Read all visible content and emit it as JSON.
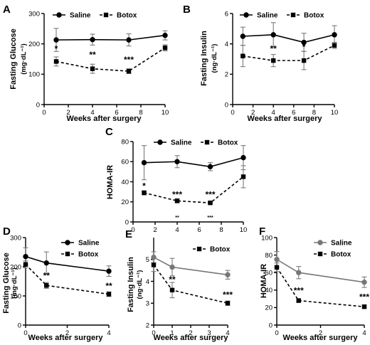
{
  "chart_data": [
    {
      "type": "line",
      "letter": "A",
      "xlabel": "Weeks after surgery",
      "ylabel": "Fasting Glucose",
      "yunit": "(mg·dL⁻¹)",
      "x": [
        1,
        4,
        7,
        10
      ],
      "xlim": [
        0,
        10
      ],
      "xticks": [
        0,
        2,
        4,
        6,
        8,
        10
      ],
      "ylim": [
        0,
        300
      ],
      "yticks": [
        0,
        100,
        200,
        300
      ],
      "legend": "top",
      "series": [
        {
          "name": "Saline",
          "values": [
            213,
            214,
            213,
            228
          ],
          "err": [
            38,
            18,
            20,
            15
          ],
          "style": "solid",
          "marker": "circle",
          "color": "#000000"
        },
        {
          "name": "Botox",
          "values": [
            142,
            118,
            110,
            187
          ],
          "err": [
            15,
            15,
            8,
            10
          ],
          "style": "dashed",
          "marker": "square",
          "color": "#000000"
        }
      ],
      "annotations": [
        {
          "x": 1,
          "y": 175,
          "text": "*"
        },
        {
          "x": 4,
          "y": 155,
          "text": "**"
        },
        {
          "x": 7,
          "y": 138,
          "text": "***"
        }
      ]
    },
    {
      "type": "line",
      "letter": "B",
      "xlabel": "Weeks after surgery",
      "ylabel": "Fasting Insulin",
      "yunit": "(ng·dL⁻¹)",
      "x": [
        1,
        4,
        7,
        10
      ],
      "xlim": [
        0,
        10
      ],
      "xticks": [
        0,
        2,
        4,
        6,
        8,
        10
      ],
      "ylim": [
        0,
        6
      ],
      "yticks": [
        0,
        2,
        4,
        6
      ],
      "legend": "top",
      "series": [
        {
          "name": "Saline",
          "values": [
            4.5,
            4.6,
            4.1,
            4.6
          ],
          "err": [
            0.6,
            0.8,
            0.6,
            0.6
          ],
          "style": "solid",
          "marker": "circle",
          "color": "#000000"
        },
        {
          "name": "Botox",
          "values": [
            3.2,
            2.9,
            2.9,
            3.9
          ],
          "err": [
            0.7,
            0.4,
            0.6,
            0.2
          ],
          "style": "dashed",
          "marker": "square",
          "color": "#000000"
        }
      ],
      "annotations": [
        {
          "x": 4,
          "y": 3.5,
          "text": "**"
        },
        {
          "x": 7,
          "y": 3.6,
          "text": "*"
        }
      ]
    },
    {
      "type": "line",
      "letter": "C",
      "xlabel": "",
      "ylabel": "HOMA-IR",
      "yunit": "",
      "x": [
        1,
        4,
        7,
        10
      ],
      "xlim": [
        0,
        10
      ],
      "xticks": [
        0,
        2,
        4,
        6,
        8,
        10
      ],
      "ylim": [
        0,
        80
      ],
      "yticks": [
        0,
        20,
        40,
        60,
        80
      ],
      "legend": "top",
      "series": [
        {
          "name": "Saline",
          "values": [
            59,
            60,
            55,
            64
          ],
          "err": [
            17,
            6,
            4,
            12
          ],
          "style": "solid",
          "marker": "circle",
          "color": "#000000"
        },
        {
          "name": "Botox",
          "values": [
            29,
            21,
            19,
            45
          ],
          "err": [
            2,
            2,
            1,
            11
          ],
          "style": "dashed",
          "marker": "square",
          "color": "#000000"
        }
      ],
      "annotations": [
        {
          "x": 1,
          "y": 33,
          "text": "*"
        },
        {
          "x": 4,
          "y": 24.5,
          "text": "***"
        },
        {
          "x": 7,
          "y": 24.5,
          "text": "***"
        },
        {
          "x": 4,
          "y": 3,
          "text": "**",
          "small": true
        },
        {
          "x": 7,
          "y": 3,
          "text": "***",
          "small": true
        }
      ]
    },
    {
      "type": "line",
      "letter": "D",
      "xlabel": "Weeks after surgery",
      "ylabel": "Fasting Glucose",
      "yunit": "(mg·dL⁻¹)",
      "x": [
        0,
        1,
        4
      ],
      "xlim": [
        0,
        4
      ],
      "xticks": [
        0,
        2,
        4
      ],
      "ylim": [
        0,
        300
      ],
      "yticks": [
        0,
        100,
        200,
        300
      ],
      "legend": "right",
      "series": [
        {
          "name": "Saline",
          "values": [
            235,
            213,
            185
          ],
          "err": [
            30,
            38,
            18
          ],
          "style": "solid",
          "marker": "circle",
          "color": "#000000"
        },
        {
          "name": "Botox",
          "values": [
            208,
            136,
            106
          ],
          "err": [
            12,
            10,
            8
          ],
          "style": "dashed",
          "marker": "square",
          "color": "#000000"
        }
      ],
      "annotations": [
        {
          "x": 1,
          "y": 160,
          "text": "**"
        },
        {
          "x": 4,
          "y": 125,
          "text": "**"
        }
      ]
    },
    {
      "type": "line",
      "letter": "E",
      "xlabel": "Weeks after surgery",
      "ylabel": "Fasting Insulin",
      "yunit": "(ng·dL⁻¹)",
      "x": [
        0,
        1,
        4
      ],
      "xlim": [
        0,
        4
      ],
      "xticks": [
        0,
        1,
        2,
        3,
        4
      ],
      "ylim": [
        2,
        6
      ],
      "yticks": [
        2,
        3,
        4,
        5
      ],
      "legend": "right",
      "series": [
        {
          "name": "",
          "values": [
            5.1,
            4.65,
            4.3
          ],
          "err": [
            0.25,
            0.4,
            0.2
          ],
          "style": "solid",
          "marker": "circle",
          "color": "#777777"
        },
        {
          "name": "Botox",
          "values": [
            4.75,
            3.6,
            3.0
          ],
          "err": [
            0.3,
            0.35,
            0.1
          ],
          "style": "dashed",
          "marker": "square",
          "color": "#000000"
        }
      ],
      "annotations": [
        {
          "x": 1,
          "y": 3.95,
          "text": "**"
        },
        {
          "x": 4,
          "y": 3.25,
          "text": "***"
        }
      ]
    },
    {
      "type": "line",
      "letter": "F",
      "xlabel": "Weeks after surgery",
      "ylabel": "HOMA-IR",
      "yunit": "",
      "x": [
        0,
        1,
        4
      ],
      "xlim": [
        0,
        4
      ],
      "xticks": [
        0,
        2,
        4
      ],
      "ylim": [
        0,
        100
      ],
      "yticks": [
        0,
        20,
        40,
        60,
        80,
        100
      ],
      "legend": "right",
      "series": [
        {
          "name": "Saline",
          "values": [
            75,
            60,
            49
          ],
          "err": [
            9,
            7,
            6
          ],
          "style": "solid",
          "marker": "circle",
          "color": "#777777"
        },
        {
          "name": "Botox",
          "values": [
            66,
            28,
            21
          ],
          "err": [
            5,
            2,
            2
          ],
          "style": "dashed",
          "marker": "square",
          "color": "#000000"
        }
      ],
      "annotations": [
        {
          "x": 1,
          "y": 36,
          "text": "***"
        },
        {
          "x": 4,
          "y": 29,
          "text": "***"
        }
      ]
    }
  ]
}
